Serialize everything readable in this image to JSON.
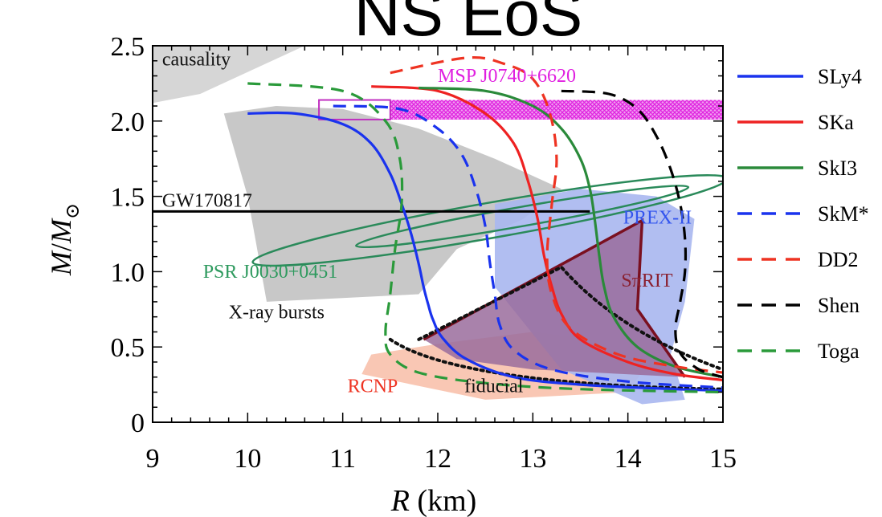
{
  "title": "NS EoS",
  "chart_data": {
    "type": "line",
    "xlabel": "R (km)",
    "ylabel": "M/M",
    "ylabel_sub": "⊙",
    "xlim": [
      9,
      15
    ],
    "ylim": [
      0,
      2.5
    ],
    "x_ticks": [
      9,
      10,
      11,
      12,
      13,
      14,
      15
    ],
    "y_ticks": [
      0,
      0.5,
      1.0,
      1.5,
      2.0,
      2.5
    ],
    "y_tick_labels": [
      "0",
      "0.5",
      "1.0",
      "1.5",
      "2.0",
      "2.5"
    ],
    "grid": false,
    "legend_position": "right",
    "annotations": [
      {
        "text": "causality",
        "x": 9.1,
        "y": 2.37,
        "color": "#111111"
      },
      {
        "text": "MSP J0740+6620",
        "x": 12.0,
        "y": 2.26,
        "color": "#e020e0"
      },
      {
        "text": "GW170817",
        "x": 9.1,
        "y": 1.43,
        "color": "#111111"
      },
      {
        "text": "PREX-II",
        "x": 13.95,
        "y": 1.32,
        "color": "#3355ee"
      },
      {
        "text": "PSR J0030+0451",
        "x": 9.53,
        "y": 0.96,
        "color": "#2e9a5e"
      },
      {
        "text": "SπRIT",
        "x": 13.93,
        "y": 0.9,
        "color": "#8a2030"
      },
      {
        "text": "X-ray bursts",
        "x": 9.8,
        "y": 0.69,
        "color": "#111111"
      },
      {
        "text": "RCNP",
        "x": 11.05,
        "y": 0.2,
        "color": "#ee3322"
      },
      {
        "text": "fiducial",
        "x": 12.28,
        "y": 0.2,
        "color": "#111111"
      }
    ],
    "bands": [
      {
        "name": "MSP J0740+6620",
        "x": [
          11.5,
          15.0
        ],
        "y": [
          2.01,
          2.14
        ],
        "color": "#e040e0"
      },
      {
        "name": "GW170817",
        "y": 1.4,
        "x": [
          9.0,
          13.6
        ],
        "color": "#000000"
      }
    ],
    "series": [
      {
        "name": "SLy4",
        "style": "solid",
        "color": "#1a33ee",
        "x": [
          10.0,
          10.5,
          11.0,
          11.3,
          11.5,
          11.62,
          11.72,
          11.8,
          11.85,
          11.9,
          11.95,
          12.05,
          12.3,
          12.8,
          13.5,
          14.5,
          15.0
        ],
        "y": [
          2.05,
          2.05,
          1.98,
          1.85,
          1.65,
          1.45,
          1.25,
          1.05,
          0.9,
          0.78,
          0.68,
          0.56,
          0.42,
          0.3,
          0.25,
          0.22,
          0.21
        ]
      },
      {
        "name": "SKa",
        "style": "solid",
        "color": "#ee2222",
        "x": [
          11.3,
          12.0,
          12.5,
          12.8,
          12.95,
          13.05,
          13.12,
          13.2,
          13.3,
          13.5,
          14.0,
          14.5,
          15.0
        ],
        "y": [
          2.23,
          2.2,
          2.05,
          1.85,
          1.6,
          1.35,
          1.1,
          0.9,
          0.72,
          0.55,
          0.4,
          0.32,
          0.28
        ]
      },
      {
        "name": "SkI3",
        "style": "solid",
        "color": "#2a8a3a",
        "x": [
          11.8,
          12.5,
          13.0,
          13.3,
          13.5,
          13.6,
          13.65,
          13.7,
          13.75,
          13.85,
          14.1,
          14.5,
          15.0
        ],
        "y": [
          2.22,
          2.2,
          2.1,
          1.95,
          1.75,
          1.55,
          1.35,
          1.1,
          0.9,
          0.7,
          0.5,
          0.37,
          0.3
        ]
      },
      {
        "name": "SkM*",
        "style": "dashed",
        "color": "#1a33ee",
        "x": [
          10.9,
          11.6,
          12.0,
          12.25,
          12.4,
          12.5,
          12.55,
          12.6,
          12.65,
          12.8,
          13.2,
          14.0,
          15.0
        ],
        "y": [
          2.1,
          2.08,
          1.95,
          1.78,
          1.55,
          1.3,
          1.05,
          0.85,
          0.65,
          0.48,
          0.35,
          0.27,
          0.23
        ]
      },
      {
        "name": "DD2",
        "style": "dashed",
        "color": "#ee3322",
        "x": [
          11.5,
          12.3,
          12.7,
          13.0,
          13.18,
          13.25,
          13.2,
          13.15,
          13.2,
          13.4,
          13.9,
          14.5,
          15.0
        ],
        "y": [
          2.32,
          2.42,
          2.38,
          2.28,
          2.05,
          1.75,
          1.45,
          1.1,
          0.85,
          0.62,
          0.45,
          0.37,
          0.33
        ]
      },
      {
        "name": "Shen",
        "style": "dashed",
        "color": "#000000",
        "x": [
          13.3,
          13.8,
          14.1,
          14.3,
          14.45,
          14.55,
          14.6,
          14.6,
          14.55,
          14.5,
          14.55,
          14.75,
          15.0
        ],
        "y": [
          2.2,
          2.18,
          2.08,
          1.9,
          1.68,
          1.45,
          1.22,
          1.0,
          0.8,
          0.62,
          0.46,
          0.35,
          0.3
        ]
      },
      {
        "name": "Toga",
        "style": "dashed",
        "color": "#2a9a3a",
        "x": [
          10.0,
          11.0,
          11.45,
          11.6,
          11.62,
          11.55,
          11.5,
          11.45,
          11.5,
          11.8,
          12.5,
          13.5,
          15.0
        ],
        "y": [
          2.25,
          2.2,
          2.0,
          1.75,
          1.45,
          1.15,
          0.85,
          0.6,
          0.45,
          0.33,
          0.26,
          0.22,
          0.2
        ]
      }
    ]
  }
}
